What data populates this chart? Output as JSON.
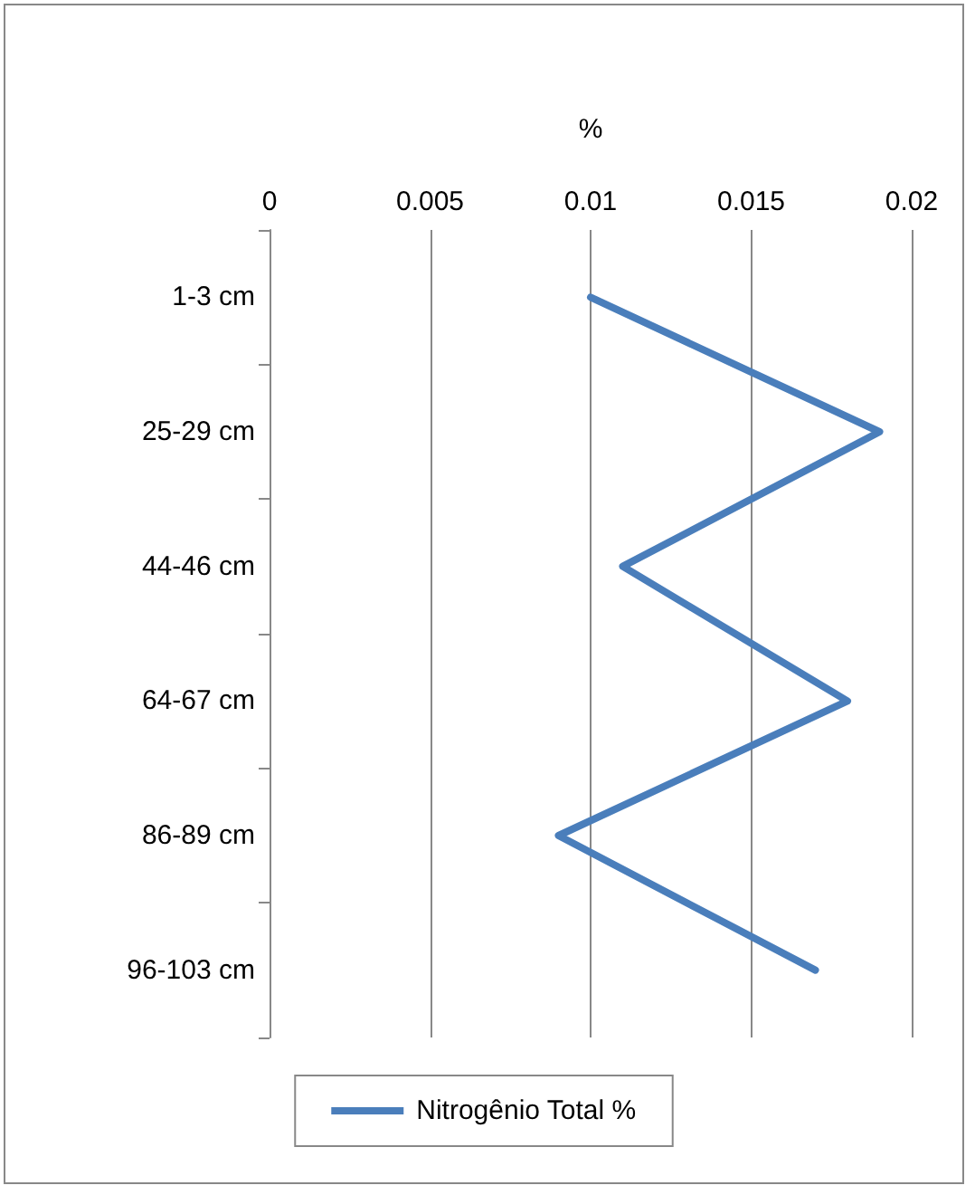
{
  "chart_data": {
    "type": "line",
    "orientation": "horizontal",
    "xlabel": "%",
    "categories": [
      "1-3 cm",
      "25-29 cm",
      "44-46 cm",
      "64-67 cm",
      "86-89 cm",
      "96-103 cm"
    ],
    "series": [
      {
        "name": "Nitrogênio Total %",
        "color": "#4a7ebb",
        "values": [
          0.01,
          0.019,
          0.011,
          0.018,
          0.009,
          0.017
        ]
      }
    ],
    "xlim": [
      0,
      0.02
    ],
    "xticks": [
      0,
      0.005,
      0.01,
      0.015,
      0.02
    ],
    "grid": "x",
    "legend": "bottom",
    "marker": "none",
    "line_style": "solid"
  }
}
